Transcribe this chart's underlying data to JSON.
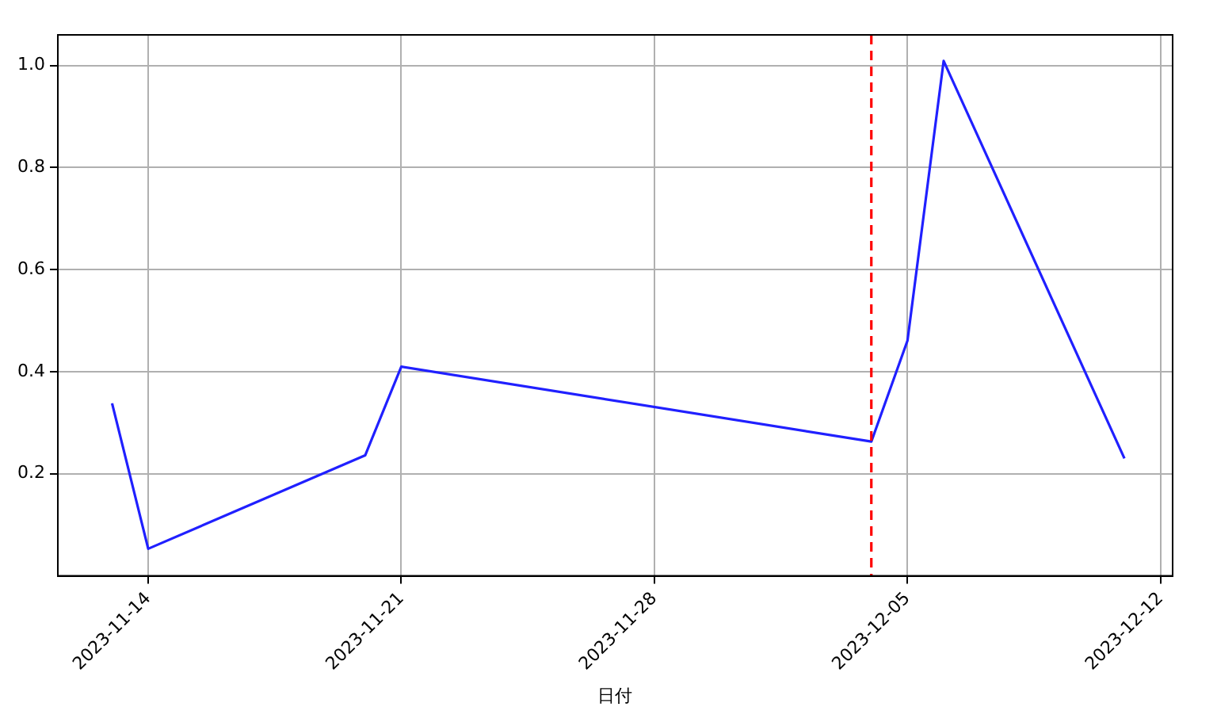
{
  "chart_data": {
    "type": "line",
    "xlabel": "日付",
    "x": [
      "2023-11-13",
      "2023-11-14",
      "2023-11-20",
      "2023-11-21",
      "2023-12-04",
      "2023-12-05",
      "2023-12-06",
      "2023-12-11"
    ],
    "series": [
      {
        "color": "#2020ff",
        "values": [
          0.338,
          0.053,
          0.236,
          0.41,
          0.263,
          0.461,
          1.009,
          0.23
        ]
      }
    ],
    "xlim": [
      "2023-11-11T12:00",
      "2023-12-12T08:00"
    ],
    "xticks": [
      "2023-11-14",
      "2023-11-21",
      "2023-11-28",
      "2023-12-05",
      "2023-12-12"
    ],
    "ylim": [
      0.0,
      1.06
    ],
    "yticks": [
      0.2,
      0.4,
      0.6,
      0.8,
      {
        "value": 1,
        "label": "1.0"
      }
    ],
    "ref_lines": [
      {
        "axis": "x",
        "value": "2023-12-04",
        "color": "#ff0000",
        "line_style": "dashed"
      }
    ],
    "grid": true,
    "legend": false,
    "marker": "none",
    "line_style": "solid"
  }
}
